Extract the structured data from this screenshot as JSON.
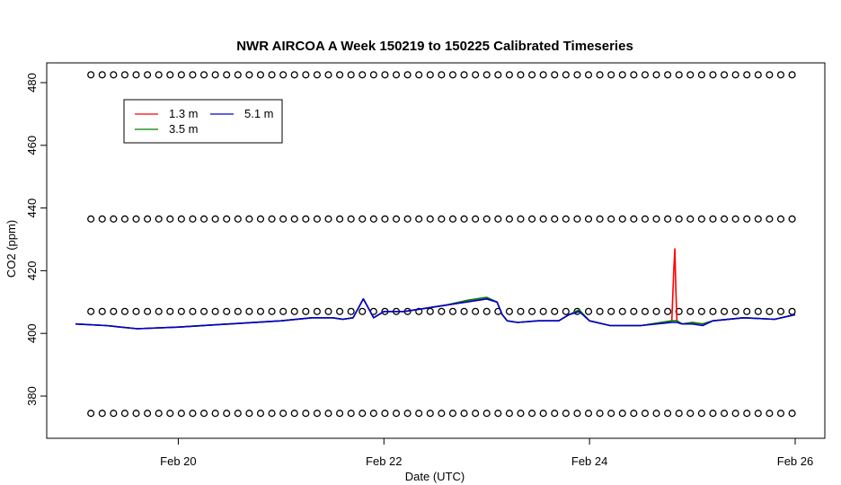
{
  "chart_data": {
    "type": "line",
    "title": "NWR AIRCOA A  Week 150219 to 150225  Calibrated Timeseries",
    "xlabel": "Date (UTC)",
    "ylabel": "CO2 (ppm)",
    "x_ticks": [
      {
        "label": "Feb 20",
        "value": 20
      },
      {
        "label": "Feb 22",
        "value": 22
      },
      {
        "label": "Feb 24",
        "value": 24
      },
      {
        "label": "Feb 26",
        "value": 26
      }
    ],
    "y_ticks": [
      380,
      400,
      420,
      440,
      460,
      480
    ],
    "xlim": [
      19.0,
      26.0
    ],
    "ylim": [
      367,
      486
    ],
    "legend": {
      "position": "top-left",
      "entries": [
        {
          "label": "1.3 m",
          "color": "#ff0000"
        },
        {
          "label": "3.5 m",
          "color": "#008000"
        },
        {
          "label": "5.1 m",
          "color": "#0000cc"
        }
      ]
    },
    "series": [
      {
        "name": "1.3 m",
        "color": "#ff0000",
        "x": [
          19.0,
          19.3,
          19.6,
          20.0,
          20.5,
          21.0,
          21.3,
          21.5,
          21.6,
          21.7,
          21.8,
          21.85,
          21.9,
          22.0,
          22.2,
          22.4,
          22.6,
          22.8,
          23.0,
          23.1,
          23.15,
          23.2,
          23.3,
          23.5,
          23.7,
          23.8,
          23.9,
          24.0,
          24.2,
          24.5,
          24.8,
          24.82,
          24.83,
          24.84,
          24.85,
          24.9,
          25.0,
          25.1,
          25.2,
          25.5,
          25.8,
          26.0
        ],
        "y": [
          403,
          402.5,
          401.5,
          402,
          403,
          404,
          405,
          405,
          404.5,
          405,
          411,
          408,
          405,
          407,
          407,
          408,
          409,
          410,
          411,
          410,
          406,
          404,
          403.5,
          404,
          404,
          406,
          407,
          404,
          402.5,
          402.5,
          404,
          421,
          427,
          413,
          404,
          403,
          403.5,
          403,
          404,
          405,
          404.5,
          406
        ]
      },
      {
        "name": "3.5 m",
        "color": "#008000",
        "x": [
          19.0,
          19.3,
          19.6,
          20.0,
          20.5,
          21.0,
          21.3,
          21.5,
          21.6,
          21.7,
          21.8,
          21.85,
          21.9,
          22.0,
          22.2,
          22.4,
          22.6,
          22.8,
          23.0,
          23.1,
          23.15,
          23.2,
          23.3,
          23.5,
          23.7,
          23.8,
          23.9,
          24.0,
          24.2,
          24.5,
          24.8,
          24.85,
          24.9,
          25.0,
          25.1,
          25.2,
          25.5,
          25.8,
          26.0
        ],
        "y": [
          403,
          402.5,
          401.5,
          402,
          403,
          404,
          405,
          405,
          404.5,
          405,
          411,
          408,
          405,
          407,
          407,
          408,
          409,
          410.5,
          411.5,
          410,
          406,
          404,
          403.5,
          404,
          404,
          406,
          407.5,
          404,
          402.5,
          402.5,
          404,
          404,
          403,
          403.5,
          403,
          404,
          405,
          404.5,
          406
        ]
      },
      {
        "name": "5.1 m",
        "color": "#0000cc",
        "x": [
          19.0,
          19.3,
          19.6,
          20.0,
          20.5,
          21.0,
          21.3,
          21.5,
          21.6,
          21.7,
          21.8,
          21.85,
          21.9,
          22.0,
          22.2,
          22.4,
          22.6,
          22.8,
          23.0,
          23.1,
          23.15,
          23.2,
          23.3,
          23.5,
          23.7,
          23.8,
          23.9,
          24.0,
          24.2,
          24.5,
          24.8,
          24.85,
          24.9,
          25.0,
          25.1,
          25.2,
          25.5,
          25.8,
          26.0
        ],
        "y": [
          403,
          402.5,
          401.5,
          402,
          403,
          404,
          405,
          405,
          404.5,
          405,
          411,
          408,
          405,
          407,
          407,
          408,
          409,
          410,
          411,
          410,
          406,
          404,
          403.5,
          404,
          404,
          406,
          407,
          404,
          402.5,
          402.5,
          403.5,
          403.5,
          403,
          403,
          402.5,
          404,
          405,
          404.5,
          406
        ]
      }
    ],
    "marker_rows": {
      "marker": "o",
      "y": [
        482.5,
        436.5,
        407,
        374.5
      ],
      "x_start": 19.15,
      "x_end": 26.0,
      "x_step": 0.11
    }
  }
}
